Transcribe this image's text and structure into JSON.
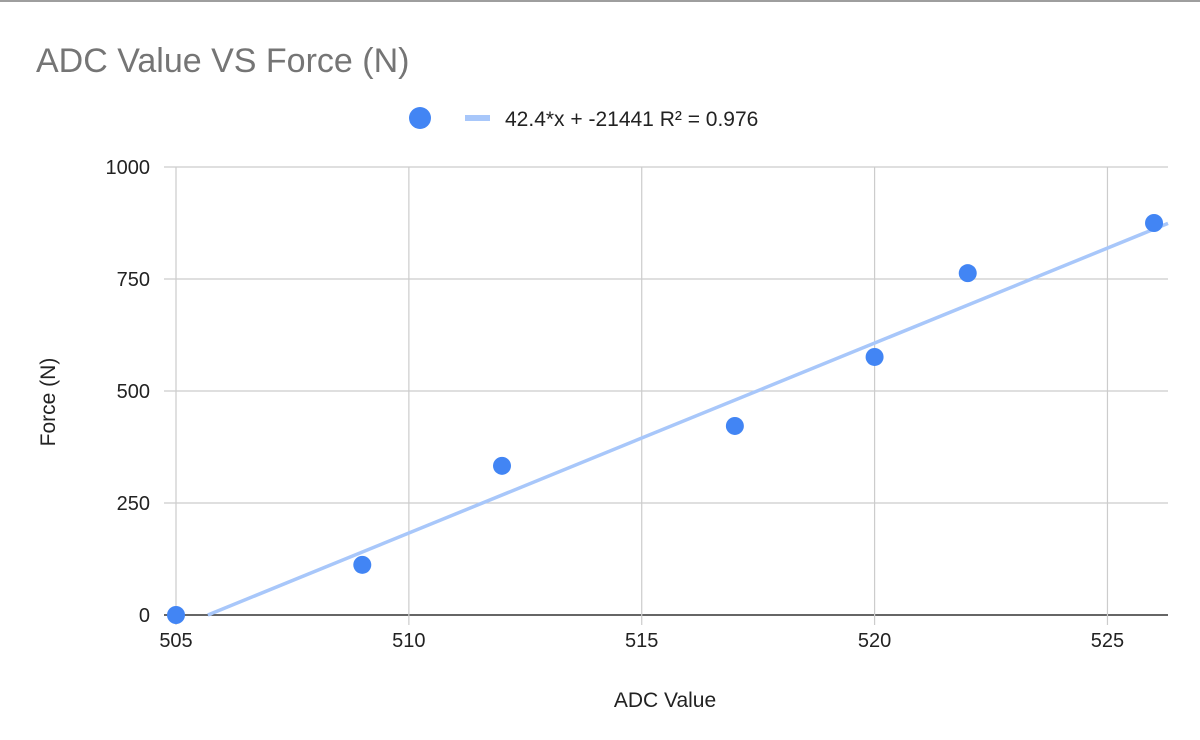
{
  "chart_data": {
    "type": "scatter",
    "title": "ADC Value VS Force (N)",
    "xlabel": "ADC Value",
    "ylabel": "Force (N)",
    "xlim": [
      505,
      526.3
    ],
    "ylim": [
      0,
      1000
    ],
    "x_ticks": [
      505,
      510,
      515,
      520,
      525
    ],
    "y_ticks": [
      0,
      250,
      500,
      750,
      1000
    ],
    "grid": true,
    "legend_position": "top",
    "points": [
      {
        "x": 505,
        "y": 0
      },
      {
        "x": 509,
        "y": 112
      },
      {
        "x": 512,
        "y": 333
      },
      {
        "x": 517,
        "y": 422
      },
      {
        "x": 520,
        "y": 576
      },
      {
        "x": 522,
        "y": 763
      },
      {
        "x": 526,
        "y": 875
      }
    ],
    "trendline": {
      "slope": 42.4,
      "intercept": -21441,
      "r2": 0.976,
      "label": "42.4*x + -21441 R² = 0.976"
    },
    "colors": {
      "points": "#4285f4",
      "trendline": "#a8c7fa",
      "grid": "#cccccc",
      "title": "#757575",
      "text": "#222222"
    }
  }
}
